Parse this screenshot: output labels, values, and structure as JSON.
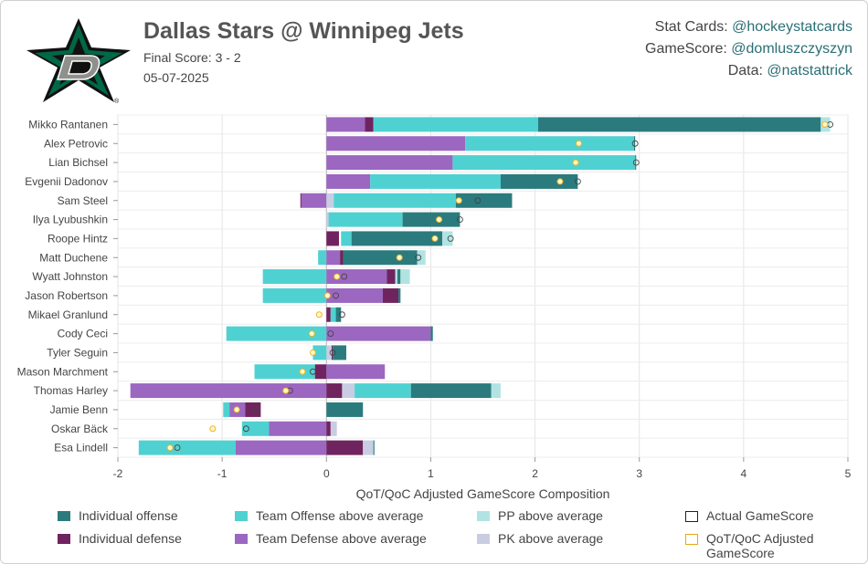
{
  "header": {
    "title": "Dallas Stars @ Winnipeg Jets",
    "final_score": "Final Score: 3 - 2",
    "date": "05-07-2025"
  },
  "credits": [
    {
      "label": "Stat Cards: ",
      "handle": "@hockeystatcards"
    },
    {
      "label": "GameScore: ",
      "handle": "@domluszczyszyn"
    },
    {
      "label": "Data: ",
      "handle": "@natstattrick"
    }
  ],
  "colors": {
    "ind_off": "#2b7b7e",
    "ind_def": "#70245f",
    "team_off": "#4fd1d1",
    "team_def": "#9b67c0",
    "pp": "#b2e3e3",
    "pk": "#c9cde3",
    "logo_green": "#006847",
    "logo_gray": "#8f8f8c"
  },
  "legend": [
    {
      "key": "ind_off",
      "label": "Individual offense",
      "type": "fill"
    },
    {
      "key": "team_off",
      "label": "Team Offense above average",
      "type": "fill"
    },
    {
      "key": "pp",
      "label": "PP above average",
      "type": "fill"
    },
    {
      "key": "actual",
      "label": "Actual GameScore",
      "type": "outline-dark"
    },
    {
      "key": "ind_def",
      "label": "Individual defense",
      "type": "fill"
    },
    {
      "key": "team_def",
      "label": "Team Defense above average",
      "type": "fill"
    },
    {
      "key": "pk",
      "label": "PK above average",
      "type": "fill"
    },
    {
      "key": "adjusted",
      "label": "QoT/QoC Adjusted GameScore",
      "type": "outline-gold"
    }
  ],
  "chart_data": {
    "type": "bar",
    "orientation": "horizontal",
    "stacked": true,
    "xlabel": "QoT/QoC Adjusted GameScore Composition",
    "xlim": [
      -2,
      5
    ],
    "xticks": [
      -2,
      -1,
      0,
      1,
      2,
      3,
      4,
      5
    ],
    "grid": true,
    "legend_position": "bottom",
    "players": [
      {
        "name": "Mikko Rantanen",
        "segs": [
          [
            "team_def",
            0,
            0.37
          ],
          [
            "ind_def",
            0.37,
            0.45
          ],
          [
            "team_off",
            0.45,
            2.03
          ],
          [
            "ind_off",
            2.03,
            4.74
          ],
          [
            "pp",
            4.74,
            4.83
          ]
        ],
        "actual": 4.83,
        "adjusted": 4.78
      },
      {
        "name": "Alex Petrovic",
        "segs": [
          [
            "team_def",
            0,
            1.33
          ],
          [
            "team_off",
            1.33,
            2.95
          ],
          [
            "ind_off",
            2.95,
            2.96
          ]
        ],
        "actual": 2.96,
        "adjusted": 2.42
      },
      {
        "name": "Lian Bichsel",
        "segs": [
          [
            "team_def",
            0,
            1.21
          ],
          [
            "team_off",
            1.21,
            2.96
          ],
          [
            "ind_off",
            2.96,
            2.97
          ]
        ],
        "actual": 2.97,
        "adjusted": 2.39
      },
      {
        "name": "Evgenii Dadonov",
        "segs": [
          [
            "team_def",
            0,
            0.42
          ],
          [
            "team_off",
            0.42,
            1.67
          ],
          [
            "ind_off",
            1.67,
            2.41
          ]
        ],
        "actual": 2.41,
        "adjusted": 2.24
      },
      {
        "name": "Sam Steel",
        "segs": [
          [
            "ind_def",
            -0.25,
            -0.24
          ],
          [
            "team_def",
            -0.24,
            0
          ],
          [
            "pk",
            0,
            0.07
          ],
          [
            "team_off",
            0.07,
            1.24
          ],
          [
            "ind_off",
            1.24,
            1.78
          ]
        ],
        "actual": 1.45,
        "adjusted": 1.27
      },
      {
        "name": "Ilya Lyubushkin",
        "segs": [
          [
            "pk",
            0,
            0.02
          ],
          [
            "team_off",
            0.02,
            0.73
          ],
          [
            "ind_off",
            0.73,
            1.28
          ]
        ],
        "actual": 1.28,
        "adjusted": 1.08
      },
      {
        "name": "Roope Hintz",
        "segs": [
          [
            "ind_def",
            0,
            0.12
          ],
          [
            "team_off",
            0.14,
            0.24
          ],
          [
            "ind_off",
            0.24,
            1.11
          ],
          [
            "pp",
            1.11,
            1.21
          ]
        ],
        "actual": 1.19,
        "adjusted": 1.04
      },
      {
        "name": "Matt Duchene",
        "segs": [
          [
            "team_off",
            -0.08,
            0
          ],
          [
            "team_def",
            0,
            0.13
          ],
          [
            "ind_def",
            0.13,
            0.16
          ],
          [
            "ind_off",
            0.16,
            0.87
          ],
          [
            "pp",
            0.87,
            0.95
          ]
        ],
        "actual": 0.88,
        "adjusted": 0.7
      },
      {
        "name": "Wyatt Johnston",
        "segs": [
          [
            "team_off",
            -0.61,
            0
          ],
          [
            "team_def",
            0,
            0.58
          ],
          [
            "ind_def",
            0.58,
            0.66
          ],
          [
            "pp",
            0.66,
            0.68
          ],
          [
            "ind_off",
            0.68,
            0.71
          ],
          [
            "pp",
            0.71,
            0.8
          ]
        ],
        "actual": 0.17,
        "adjusted": 0.1
      },
      {
        "name": "Jason Robertson",
        "segs": [
          [
            "team_off",
            -0.61,
            0
          ],
          [
            "team_def",
            0,
            0.54
          ],
          [
            "ind_def",
            0.54,
            0.69
          ],
          [
            "ind_off",
            0.69,
            0.71
          ]
        ],
        "actual": 0.09,
        "adjusted": 0.01
      },
      {
        "name": "Mikael Granlund",
        "segs": [
          [
            "ind_def",
            0,
            0.04
          ],
          [
            "team_off",
            0.04,
            0.09
          ],
          [
            "ind_off",
            0.09,
            0.14
          ]
        ],
        "actual": 0.15,
        "adjusted": -0.07
      },
      {
        "name": "Cody Ceci",
        "segs": [
          [
            "team_off",
            -0.96,
            0
          ],
          [
            "team_def",
            0,
            1.0
          ],
          [
            "ind_off",
            1.0,
            1.02
          ]
        ],
        "actual": 0.04,
        "adjusted": -0.14
      },
      {
        "name": "Tyler Seguin",
        "segs": [
          [
            "team_off",
            -0.13,
            0
          ],
          [
            "pk",
            0,
            0.05
          ],
          [
            "ind_def",
            0.05,
            0.06
          ],
          [
            "ind_off",
            0.06,
            0.19
          ]
        ],
        "actual": 0.06,
        "adjusted": -0.13
      },
      {
        "name": "Mason Marchment",
        "segs": [
          [
            "team_off",
            -0.69,
            -0.11
          ],
          [
            "ind_def",
            -0.11,
            0
          ],
          [
            "team_def",
            0,
            0.56
          ]
        ],
        "actual": -0.13,
        "adjusted": -0.23
      },
      {
        "name": "Thomas Harley",
        "segs": [
          [
            "team_def",
            -1.88,
            0
          ],
          [
            "ind_def",
            0,
            0.15
          ],
          [
            "pk",
            0.15,
            0.27
          ],
          [
            "team_off",
            0.27,
            0.81
          ],
          [
            "ind_off",
            0.81,
            1.58
          ],
          [
            "pp",
            1.58,
            1.67
          ]
        ],
        "actual": -0.35,
        "adjusted": -0.39
      },
      {
        "name": "Jamie Benn",
        "segs": [
          [
            "team_off",
            -0.99,
            -0.93
          ],
          [
            "team_def",
            -0.93,
            -0.78
          ],
          [
            "ind_def",
            -0.78,
            -0.63
          ],
          [
            "ind_off",
            0,
            0.35
          ]
        ],
        "actual": -0.67,
        "adjusted": -0.86
      },
      {
        "name": "Oskar Bäck",
        "segs": [
          [
            "team_off",
            -0.81,
            -0.55
          ],
          [
            "team_def",
            -0.55,
            0
          ],
          [
            "ind_def",
            0,
            0.04
          ],
          [
            "pk",
            0.04,
            0.1
          ]
        ],
        "actual": -0.77,
        "adjusted": -1.09
      },
      {
        "name": "Esa Lindell",
        "segs": [
          [
            "team_off",
            -1.8,
            -0.87
          ],
          [
            "team_def",
            -0.87,
            0
          ],
          [
            "ind_def",
            0,
            0.35
          ],
          [
            "pk",
            0.35,
            0.45
          ],
          [
            "ind_off",
            0.45,
            0.46
          ]
        ],
        "actual": -1.43,
        "adjusted": -1.5
      }
    ]
  }
}
